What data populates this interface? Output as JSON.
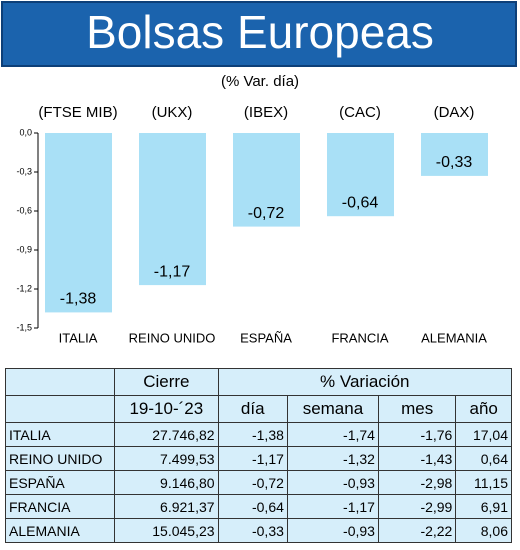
{
  "header": {
    "title": "Bolsas Europeas"
  },
  "chart_data": {
    "type": "bar",
    "subtitle": "(% Var. día)",
    "categories": [
      "ITALIA",
      "REINO UNIDO",
      "ESPAÑA",
      "FRANCIA",
      "ALEMANIA"
    ],
    "indices": [
      "(FTSE MIB)",
      "(UKX)",
      "(IBEX)",
      "(CAC)",
      "(DAX)"
    ],
    "values": [
      -1.38,
      -1.17,
      -0.72,
      -0.64,
      -0.33
    ],
    "value_labels": [
      "-1,38",
      "-1,17",
      "-0,72",
      "-0,64",
      "-0,33"
    ],
    "color": "#a9e0f6",
    "ylim": [
      -1.5,
      0
    ],
    "yticks": [
      {
        "value": 0,
        "label": "0,0"
      },
      {
        "value": -0.3,
        "label": "-0,3"
      },
      {
        "value": -0.6,
        "label": "-0,6"
      },
      {
        "value": -0.9,
        "label": "-0,9"
      },
      {
        "value": -1.2,
        "label": "-1,2"
      },
      {
        "value": -1.5,
        "label": "-1,5"
      }
    ]
  },
  "table": {
    "group_headers": [
      "Cierre",
      "% Variación"
    ],
    "columns": [
      "19-10-´23",
      "día",
      "semana",
      "mes",
      "año"
    ],
    "rows": [
      [
        "ITALIA",
        "27.746,82",
        "-1,38",
        "-1,74",
        "-1,76",
        "17,04"
      ],
      [
        "REINO UNIDO",
        "7.499,53",
        "-1,17",
        "-1,32",
        "-1,43",
        "0,64"
      ],
      [
        "ESPAÑA",
        "9.146,80",
        "-0,72",
        "-0,93",
        "-2,98",
        "11,15"
      ],
      [
        "FRANCIA",
        "6.921,37",
        "-0,64",
        "-1,17",
        "-2,99",
        "6,91"
      ],
      [
        "ALEMANIA",
        "15.045,23",
        "-0,33",
        "-0,93",
        "-2,22",
        "8,06"
      ]
    ]
  }
}
